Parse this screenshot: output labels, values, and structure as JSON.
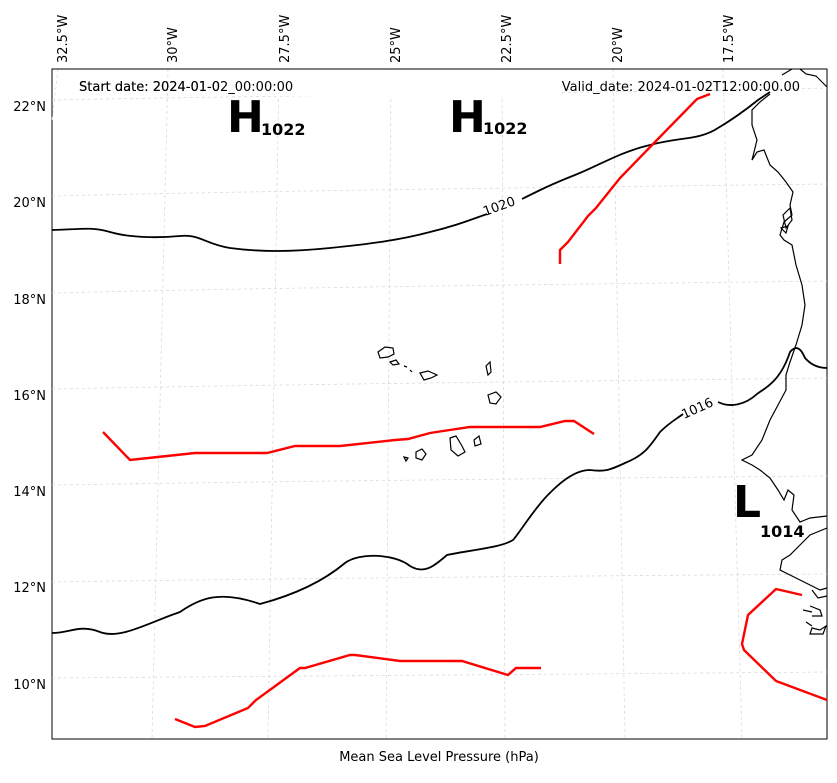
{
  "header": {
    "start_date": "Start date: 2024-01-02_00:00:00",
    "valid_date": "Valid_date: 2024-01-02T12:00:00.00"
  },
  "xlabel": "Mean Sea Level Pressure (hPa)",
  "lon_ticks": [
    "32.5°W",
    "30°W",
    "27.5°W",
    "25°W",
    "22.5°W",
    "20°W",
    "17.5°W"
  ],
  "lat_ticks": [
    "22°N",
    "20°N",
    "18°N",
    "16°N",
    "14°N",
    "12°N",
    "10°N"
  ],
  "contour_labels": {
    "c1020": "1020",
    "c1016": "1016"
  },
  "pressure_centers": [
    {
      "type": "high",
      "symbol": "H",
      "value": "1022"
    },
    {
      "type": "high",
      "symbol": "H",
      "value": "1022"
    },
    {
      "type": "low",
      "symbol": "L",
      "value": "1014"
    }
  ],
  "colors": {
    "isobar": "#000000",
    "front": "#ff0000",
    "grid": "#d9d9d9",
    "coast": "#000000"
  }
}
